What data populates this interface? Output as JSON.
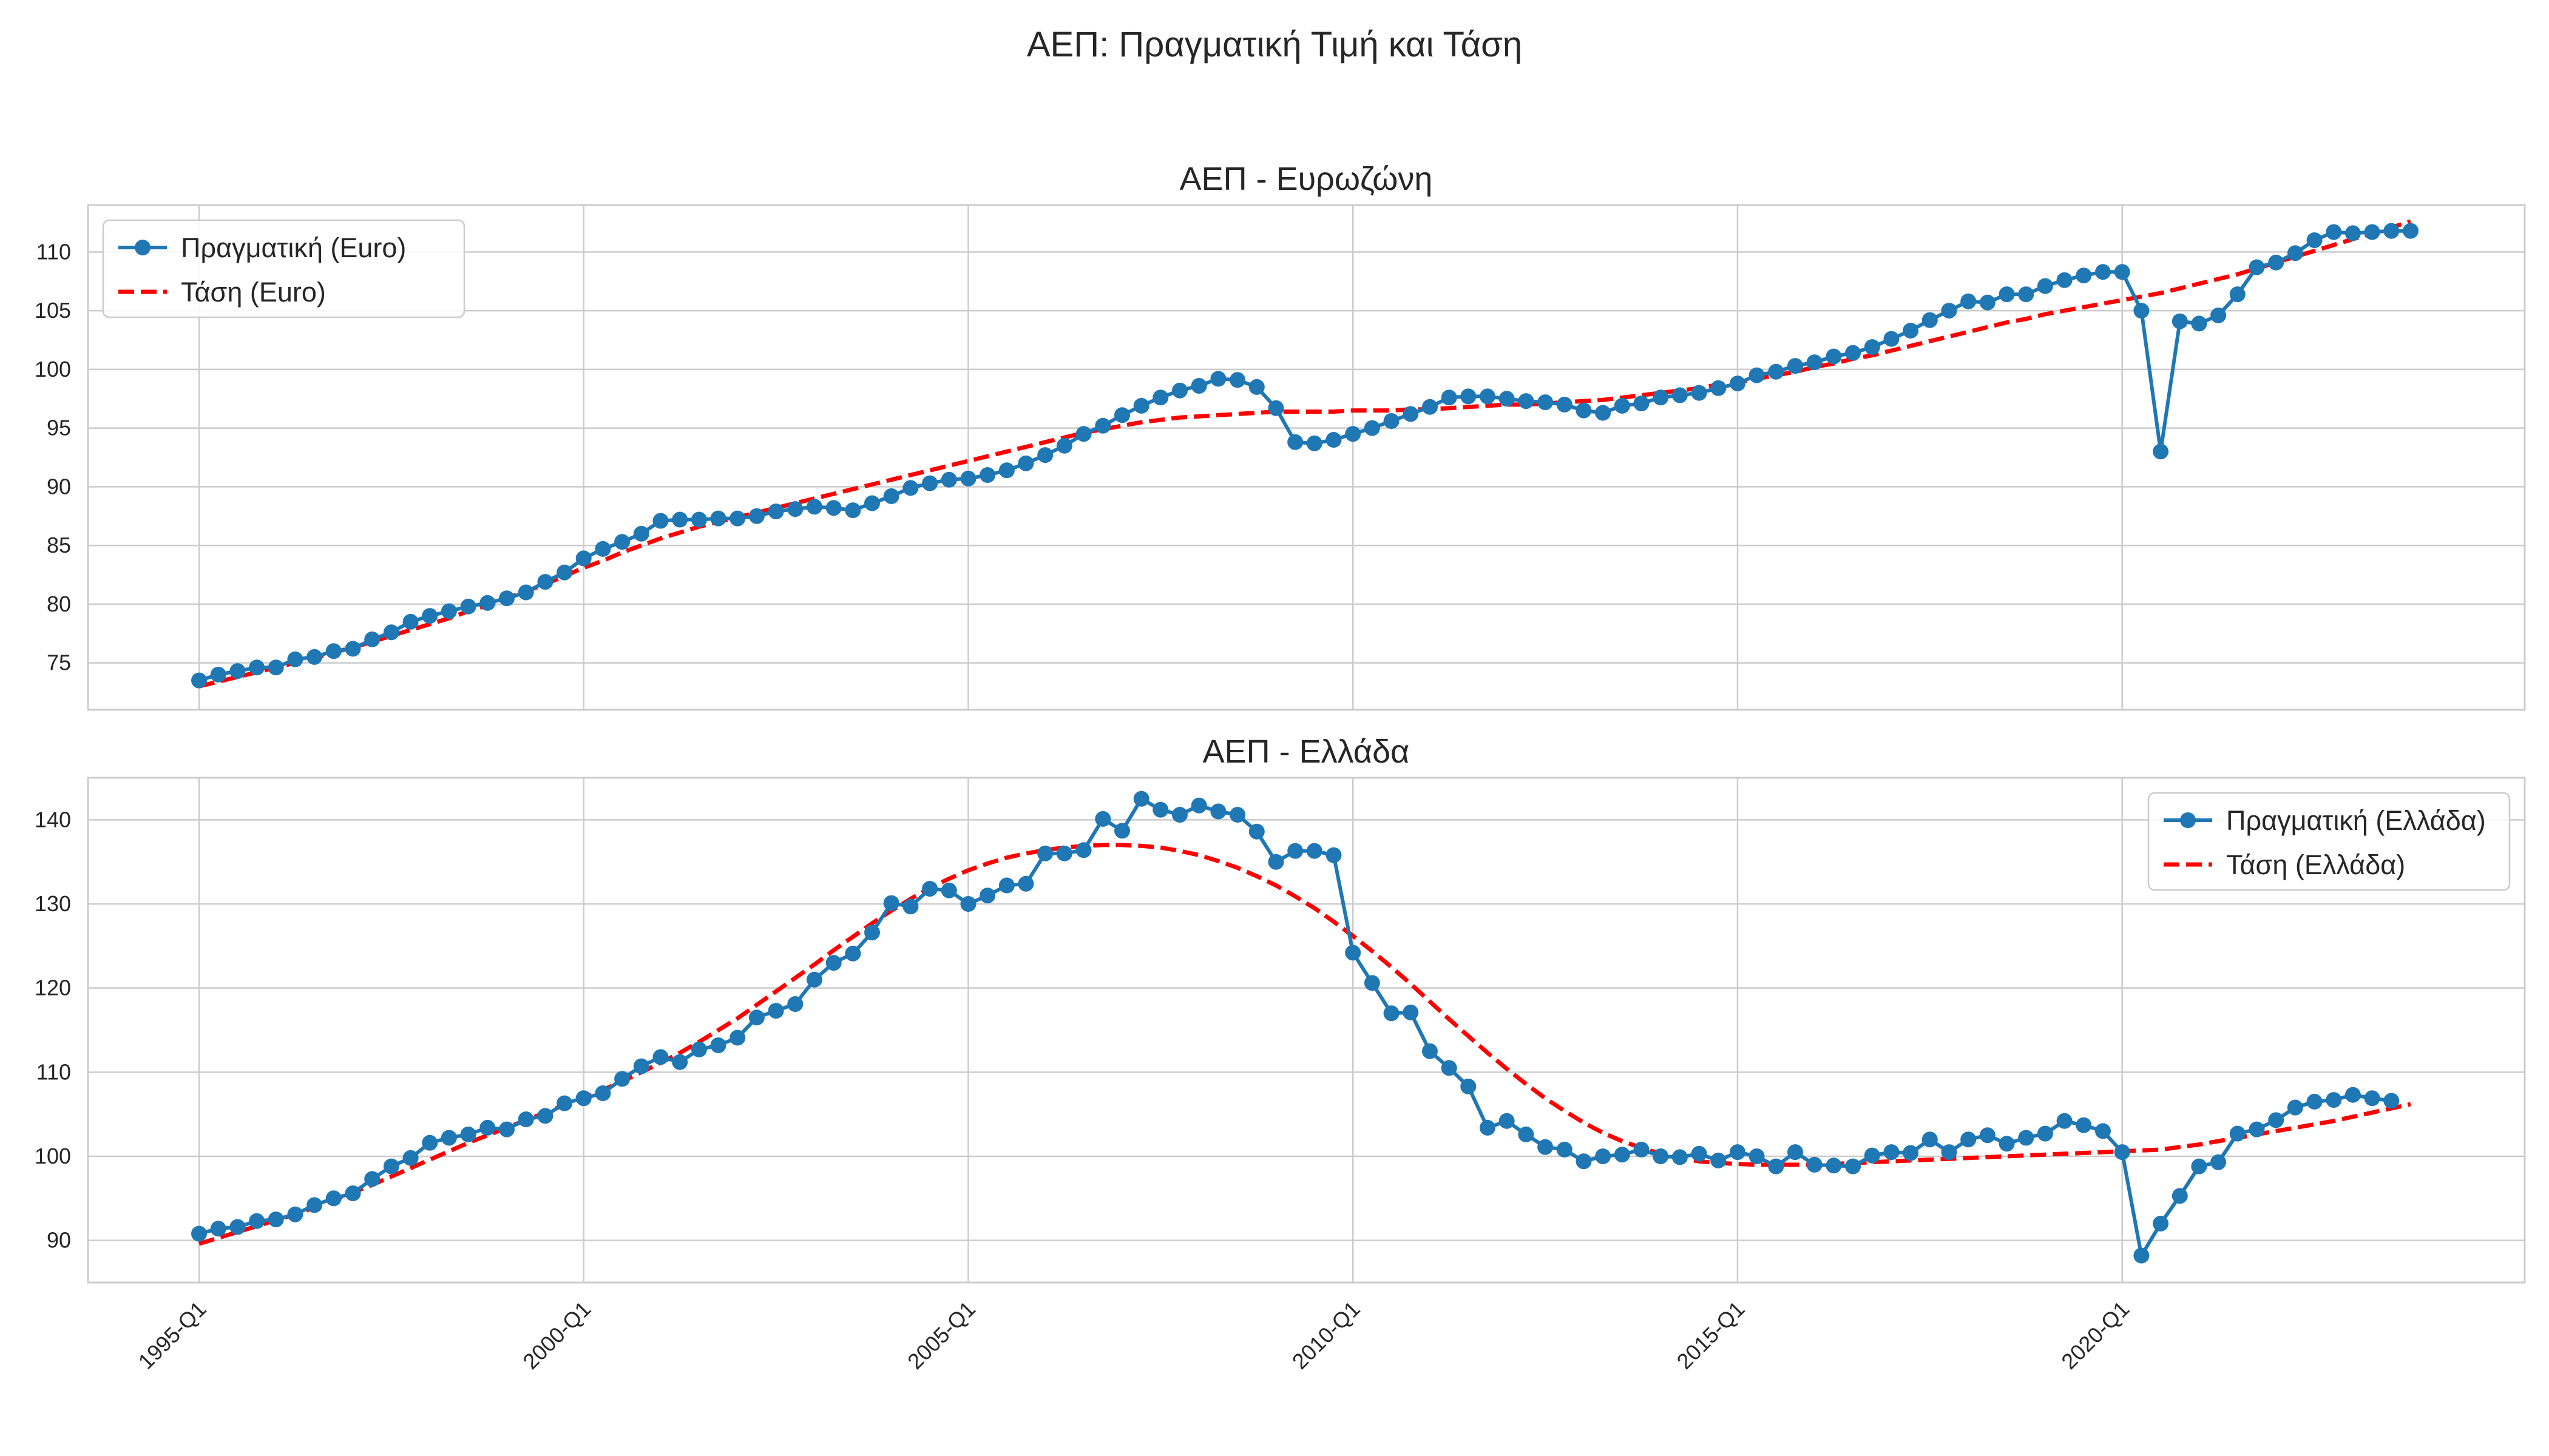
{
  "title": "ΑΕΠ: Πραγματική Τιμή και Τάση",
  "x_tick_labels": [
    "1995-Q1",
    "2000-Q1",
    "2005-Q1",
    "2010-Q1",
    "2015-Q1",
    "2020-Q1"
  ],
  "colors": {
    "actual": "#1f77b4",
    "trend": "#ff0000",
    "grid": "#cccccc",
    "spine": "#cccccc"
  },
  "chart_data": [
    {
      "type": "line",
      "title": "ΑΕΠ - Ευρωζώνη",
      "ylim": [
        71,
        114
      ],
      "yticks": [
        75,
        80,
        85,
        90,
        95,
        100,
        105,
        110
      ],
      "grid": true,
      "legend_position": "upper-left",
      "series": [
        {
          "name": "Πραγματική (Euro)",
          "style": "solid-marker",
          "values": [
            73.5,
            74.0,
            74.3,
            74.6,
            74.6,
            75.3,
            75.5,
            76.0,
            76.2,
            77.0,
            77.6,
            78.5,
            79.0,
            79.4,
            79.8,
            80.1,
            80.5,
            81.0,
            81.9,
            82.7,
            83.9,
            84.7,
            85.3,
            86.0,
            87.1,
            87.2,
            87.2,
            87.3,
            87.3,
            87.5,
            87.9,
            88.1,
            88.3,
            88.2,
            88.0,
            88.6,
            89.2,
            89.9,
            90.3,
            90.6,
            90.7,
            91.0,
            91.4,
            92.0,
            92.7,
            93.5,
            94.5,
            95.2,
            96.1,
            96.9,
            97.6,
            98.2,
            98.6,
            99.2,
            99.1,
            98.5,
            96.7,
            93.8,
            93.7,
            94.0,
            94.5,
            95.0,
            95.6,
            96.2,
            96.8,
            97.6,
            97.7,
            97.7,
            97.5,
            97.3,
            97.2,
            97.0,
            96.5,
            96.3,
            96.9,
            97.1,
            97.6,
            97.8,
            98.0,
            98.4,
            98.8,
            99.5,
            99.8,
            100.3,
            100.6,
            101.1,
            101.4,
            101.9,
            102.6,
            103.3,
            104.2,
            105.0,
            105.8,
            105.7,
            106.4,
            106.4,
            107.1,
            107.6,
            108.0,
            108.3,
            108.3,
            105.0,
            93.0,
            104.1,
            103.9,
            104.6,
            106.4,
            108.7,
            109.1,
            109.9,
            111.0,
            111.7,
            111.6,
            111.7,
            111.8,
            111.8
          ]
        },
        {
          "name": "Τάση (Euro)",
          "style": "dashed",
          "values": [
            73.0,
            73.4,
            73.8,
            74.2,
            74.6,
            75.0,
            75.4,
            75.9,
            76.3,
            76.8,
            77.3,
            77.8,
            78.3,
            78.8,
            79.4,
            79.9,
            80.5,
            81.1,
            81.7,
            82.4,
            83.1,
            83.7,
            84.4,
            85.0,
            85.6,
            86.1,
            86.6,
            87.0,
            87.4,
            87.8,
            88.2,
            88.6,
            89.0,
            89.4,
            89.8,
            90.2,
            90.6,
            91.0,
            91.4,
            91.8,
            92.2,
            92.6,
            93.0,
            93.4,
            93.8,
            94.2,
            94.6,
            94.9,
            95.2,
            95.5,
            95.7,
            95.9,
            96.0,
            96.1,
            96.2,
            96.3,
            96.4,
            96.4,
            96.4,
            96.4,
            96.5,
            96.5,
            96.5,
            96.6,
            96.6,
            96.7,
            96.8,
            96.9,
            97.0,
            97.0,
            97.1,
            97.2,
            97.3,
            97.4,
            97.6,
            97.8,
            98.0,
            98.2,
            98.4,
            98.7,
            98.9,
            99.2,
            99.5,
            99.8,
            100.2,
            100.5,
            100.9,
            101.2,
            101.6,
            102.0,
            102.4,
            102.8,
            103.2,
            103.6,
            104.0,
            104.3,
            104.7,
            105.0,
            105.3,
            105.6,
            105.9,
            106.2,
            106.5,
            106.9,
            107.3,
            107.7,
            108.1,
            108.6,
            109.1,
            109.6,
            110.1,
            110.6,
            111.1,
            111.6,
            112.1,
            112.6
          ]
        }
      ]
    },
    {
      "type": "line",
      "title": "ΑΕΠ - Ελλάδα",
      "ylim": [
        85,
        145
      ],
      "yticks": [
        90,
        100,
        110,
        120,
        130,
        140
      ],
      "grid": true,
      "legend_position": "upper-right",
      "series": [
        {
          "name": "Πραγματική (Ελλάδα)",
          "style": "solid-marker",
          "values": [
            90.8,
            91.4,
            91.6,
            92.3,
            92.5,
            93.1,
            94.2,
            95.0,
            95.6,
            97.3,
            98.8,
            99.8,
            101.6,
            102.2,
            102.6,
            103.4,
            103.2,
            104.4,
            104.8,
            106.3,
            106.9,
            107.5,
            109.2,
            110.7,
            111.8,
            111.2,
            112.7,
            113.2,
            114.1,
            116.5,
            117.3,
            118.1,
            121.0,
            123.0,
            124.1,
            126.6,
            130.1,
            129.7,
            131.8,
            131.6,
            130.0,
            131.0,
            132.2,
            132.4,
            136.0,
            136.0,
            136.4,
            140.1,
            138.7,
            142.5,
            141.2,
            140.6,
            141.7,
            141.0,
            140.6,
            138.6,
            135.0,
            136.3,
            136.3,
            135.8,
            124.2,
            120.6,
            117.0,
            117.1,
            112.5,
            110.5,
            108.3,
            103.4,
            104.2,
            102.6,
            101.1,
            100.8,
            99.4,
            100.0,
            100.2,
            100.8,
            100.0,
            99.9,
            100.3,
            99.5,
            100.5,
            100.0,
            98.8,
            100.5,
            99.0,
            98.9,
            98.8,
            100.1,
            100.5,
            100.4,
            102.0,
            100.5,
            102.0,
            102.5,
            101.5,
            102.2,
            102.7,
            104.2,
            103.7,
            103.0,
            100.5,
            88.2,
            92.0,
            95.3,
            98.8,
            99.3,
            102.7,
            103.2,
            104.3,
            105.8,
            106.5,
            106.7,
            107.3,
            106.9,
            106.6
          ]
        },
        {
          "name": "Τάση (Ελλάδα)",
          "style": "dashed",
          "values": [
            89.6,
            90.3,
            91.0,
            91.7,
            92.4,
            93.1,
            93.9,
            94.8,
            95.7,
            96.6,
            97.6,
            98.6,
            99.6,
            100.6,
            101.6,
            102.5,
            103.4,
            104.3,
            105.2,
            106.1,
            107.0,
            107.9,
            108.9,
            110.0,
            111.1,
            112.3,
            113.6,
            115.0,
            116.4,
            118.0,
            119.6,
            121.2,
            122.8,
            124.5,
            126.1,
            127.7,
            129.2,
            130.6,
            131.9,
            133.0,
            134.0,
            134.8,
            135.5,
            136.0,
            136.4,
            136.7,
            136.9,
            137.0,
            137.0,
            136.9,
            136.7,
            136.3,
            135.8,
            135.1,
            134.3,
            133.3,
            132.2,
            130.9,
            129.5,
            127.9,
            126.2,
            124.4,
            122.5,
            120.5,
            118.4,
            116.3,
            114.3,
            112.3,
            110.4,
            108.6,
            106.9,
            105.4,
            104.0,
            102.8,
            101.8,
            101.0,
            100.3,
            99.8,
            99.4,
            99.2,
            99.1,
            99.0,
            99.0,
            99.0,
            99.0,
            99.1,
            99.2,
            99.3,
            99.4,
            99.5,
            99.6,
            99.7,
            99.8,
            99.9,
            100.0,
            100.1,
            100.2,
            100.3,
            100.4,
            100.5,
            100.6,
            100.7,
            100.8,
            101.1,
            101.4,
            101.8,
            102.2,
            102.6,
            103.0,
            103.4,
            103.8,
            104.2,
            104.7,
            105.2,
            105.7,
            106.2
          ]
        }
      ]
    }
  ]
}
